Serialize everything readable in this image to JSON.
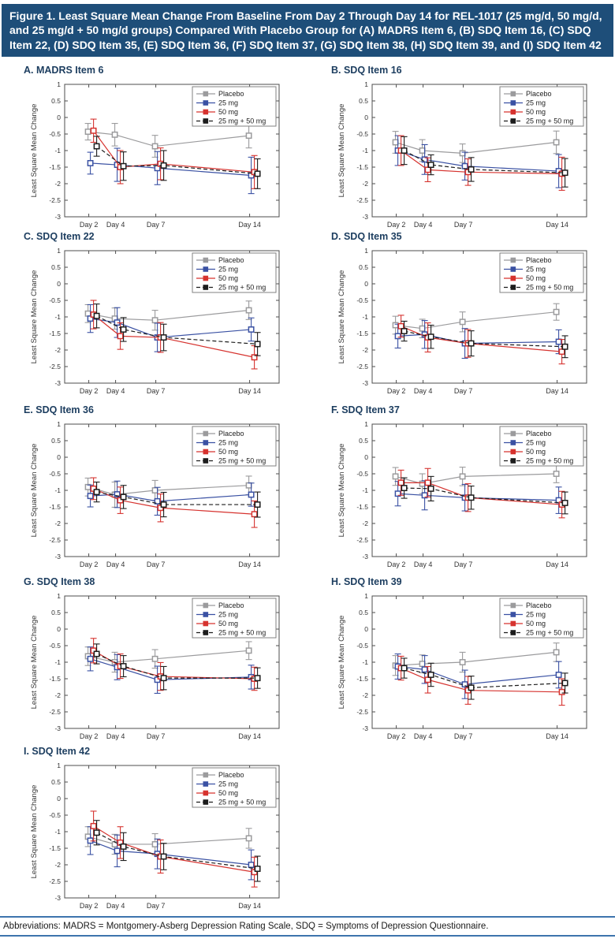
{
  "figure": {
    "title": "Figure 1. Least Square Mean Change From Baseline From Day 2 Through Day 14 for REL-1017 (25 mg/d, 50 mg/d, and 25 mg/d + 50 mg/d groups) Compared With Placebo Group for (A) MADRS Item 6, (B) SDQ Item 16, (C) SDQ Item 22, (D) SDQ Item 35, (E) SDQ Item 36, (F) SDQ Item 37, (G) SDQ Item 38, (H) SDQ Item 39, and (I) SDQ Item 42",
    "abbreviations": "Abbreviations: MADRS = Montgomery-Asberg Depression Rating Scale, SDQ = Symptoms of Depression Questionnaire."
  },
  "colors": {
    "title_bar_bg": "#1e4e79",
    "panel_title": "#1c3d5f",
    "frame": "#4d4d4d",
    "tick_label": "#333333",
    "footer_rule": "#3d74ad",
    "placebo": "#9b9b9d",
    "dose25": "#3a51a3",
    "dose50": "#d6332f",
    "combo": "#1c1c1c"
  },
  "legend": {
    "items": [
      {
        "label": "Placebo",
        "color": "#9b9b9d",
        "dash": ""
      },
      {
        "label": "25 mg",
        "color": "#3a51a3",
        "dash": ""
      },
      {
        "label": "50 mg",
        "color": "#d6332f",
        "dash": ""
      },
      {
        "label": "25 mg + 50 mg",
        "color": "#1c1c1c",
        "dash": "5,3"
      }
    ]
  },
  "axes": {
    "ylabel": "Least Square Mean Change",
    "ylim": [
      -3,
      1
    ],
    "xlim": [
      0.2,
      16.2
    ],
    "yticks": [
      1,
      0.5,
      0,
      -0.5,
      -1,
      -1.5,
      -2,
      -2.5,
      -3
    ],
    "ytick_labels": [
      "1",
      "0.5",
      "0",
      "-0.5",
      "-1",
      "-1.5",
      "-2",
      "-2.5",
      "-3"
    ],
    "x_days": [
      2,
      4,
      7,
      14
    ],
    "xtick_labels": [
      "Day 2",
      "Day 4",
      "Day 7",
      "Day 14"
    ],
    "grid": false,
    "legend_position": "top-right"
  },
  "chart_data": [
    {
      "panel": "A",
      "title": "A. MADRS Item 6",
      "type": "line",
      "categories": [
        "Day 2",
        "Day 4",
        "Day 7",
        "Day 14"
      ],
      "x_days": [
        2,
        4,
        7,
        14
      ],
      "series": [
        {
          "name": "Placebo",
          "values": [
            -0.43,
            -0.52,
            -0.87,
            -0.55
          ],
          "errors": [
            0.25,
            0.34,
            0.33,
            0.37
          ]
        },
        {
          "name": "25 mg",
          "values": [
            -1.38,
            -1.43,
            -1.53,
            -1.75
          ],
          "errors": [
            0.33,
            0.5,
            0.5,
            0.55
          ]
        },
        {
          "name": "50 mg",
          "values": [
            -0.4,
            -1.5,
            -1.4,
            -1.65
          ],
          "errors": [
            0.35,
            0.5,
            0.48,
            0.5
          ]
        },
        {
          "name": "25 mg + 50 mg",
          "values": [
            -0.87,
            -1.47,
            -1.45,
            -1.7
          ],
          "errors": [
            0.3,
            0.43,
            0.45,
            0.45
          ]
        }
      ]
    },
    {
      "panel": "B",
      "title": "B. SDQ Item 16",
      "type": "line",
      "categories": [
        "Day 2",
        "Day 4",
        "Day 7",
        "Day 14"
      ],
      "x_days": [
        2,
        4,
        7,
        14
      ],
      "series": [
        {
          "name": "Placebo",
          "values": [
            -0.75,
            -1.0,
            -1.08,
            -0.75
          ],
          "errors": [
            0.33,
            0.33,
            0.28,
            0.34
          ]
        },
        {
          "name": "25 mg",
          "values": [
            -1.0,
            -1.27,
            -1.47,
            -1.62
          ],
          "errors": [
            0.45,
            0.45,
            0.42,
            0.5
          ]
        },
        {
          "name": "50 mg",
          "values": [
            -1.0,
            -1.58,
            -1.65,
            -1.7
          ],
          "errors": [
            0.45,
            0.36,
            0.4,
            0.5
          ]
        },
        {
          "name": "25 mg + 50 mg",
          "values": [
            -1.0,
            -1.43,
            -1.57,
            -1.67
          ],
          "errors": [
            0.42,
            0.3,
            0.36,
            0.43
          ]
        }
      ]
    },
    {
      "panel": "C",
      "title": "C. SDQ Item 22",
      "type": "line",
      "categories": [
        "Day 2",
        "Day 4",
        "Day 7",
        "Day 14"
      ],
      "x_days": [
        2,
        4,
        7,
        14
      ],
      "series": [
        {
          "name": "Placebo",
          "values": [
            -0.9,
            -1.05,
            -1.1,
            -0.8
          ],
          "errors": [
            0.27,
            0.32,
            0.3,
            0.28
          ]
        },
        {
          "name": "25 mg",
          "values": [
            -1.05,
            -1.17,
            -1.62,
            -1.38
          ],
          "errors": [
            0.42,
            0.45,
            0.43,
            0.35
          ]
        },
        {
          "name": "50 mg",
          "values": [
            -0.93,
            -1.58,
            -1.62,
            -2.22
          ],
          "errors": [
            0.43,
            0.4,
            0.45,
            0.35
          ]
        },
        {
          "name": "25 mg + 50 mg",
          "values": [
            -0.97,
            -1.38,
            -1.62,
            -1.82
          ],
          "errors": [
            0.36,
            0.36,
            0.4,
            0.35
          ]
        }
      ]
    },
    {
      "panel": "D",
      "title": "D. SDQ Item 35",
      "type": "line",
      "categories": [
        "Day 2",
        "Day 4",
        "Day 7",
        "Day 14"
      ],
      "x_days": [
        2,
        4,
        7,
        14
      ],
      "series": [
        {
          "name": "Placebo",
          "values": [
            -1.25,
            -1.35,
            -1.15,
            -0.85
          ],
          "errors": [
            0.27,
            0.28,
            0.3,
            0.25
          ]
        },
        {
          "name": "25 mg",
          "values": [
            -1.58,
            -1.53,
            -1.8,
            -1.75
          ],
          "errors": [
            0.36,
            0.42,
            0.45,
            0.36
          ]
        },
        {
          "name": "50 mg",
          "values": [
            -1.28,
            -1.62,
            -1.8,
            -2.05
          ],
          "errors": [
            0.33,
            0.44,
            0.42,
            0.37
          ]
        },
        {
          "name": "25 mg + 50 mg",
          "values": [
            -1.43,
            -1.6,
            -1.8,
            -1.9
          ],
          "errors": [
            0.3,
            0.35,
            0.38,
            0.33
          ]
        }
      ]
    },
    {
      "panel": "E",
      "title": "E. SDQ Item 36",
      "type": "line",
      "categories": [
        "Day 2",
        "Day 4",
        "Day 7",
        "Day 14"
      ],
      "x_days": [
        2,
        4,
        7,
        14
      ],
      "series": [
        {
          "name": "Placebo",
          "values": [
            -0.9,
            -1.13,
            -1.0,
            -0.85
          ],
          "errors": [
            0.27,
            0.38,
            0.3,
            0.28
          ]
        },
        {
          "name": "25 mg",
          "values": [
            -1.17,
            -1.12,
            -1.33,
            -1.13
          ],
          "errors": [
            0.33,
            0.4,
            0.42,
            0.35
          ]
        },
        {
          "name": "50 mg",
          "values": [
            -0.95,
            -1.3,
            -1.53,
            -1.72
          ],
          "errors": [
            0.33,
            0.4,
            0.42,
            0.4
          ]
        },
        {
          "name": "25 mg + 50 mg",
          "values": [
            -1.05,
            -1.2,
            -1.43,
            -1.43
          ],
          "errors": [
            0.3,
            0.35,
            0.37,
            0.38
          ]
        }
      ]
    },
    {
      "panel": "F",
      "title": "F. SDQ Item 37",
      "type": "line",
      "categories": [
        "Day 2",
        "Day 4",
        "Day 7",
        "Day 14"
      ],
      "x_days": [
        2,
        4,
        7,
        14
      ],
      "series": [
        {
          "name": "Placebo",
          "values": [
            -0.58,
            -0.8,
            -0.58,
            -0.5
          ],
          "errors": [
            0.27,
            0.3,
            0.28,
            0.27
          ]
        },
        {
          "name": "25 mg",
          "values": [
            -1.1,
            -1.15,
            -1.22,
            -1.3
          ],
          "errors": [
            0.37,
            0.44,
            0.4,
            0.4
          ]
        },
        {
          "name": "50 mg",
          "values": [
            -0.77,
            -0.77,
            -1.22,
            -1.43
          ],
          "errors": [
            0.38,
            0.43,
            0.42,
            0.4
          ]
        },
        {
          "name": "25 mg + 50 mg",
          "values": [
            -0.93,
            -0.95,
            -1.22,
            -1.38
          ],
          "errors": [
            0.31,
            0.37,
            0.35,
            0.33
          ]
        }
      ]
    },
    {
      "panel": "G",
      "title": "G. SDQ Item 38",
      "type": "line",
      "categories": [
        "Day 2",
        "Day 4",
        "Day 7",
        "Day 14"
      ],
      "x_days": [
        2,
        4,
        7,
        14
      ],
      "series": [
        {
          "name": "Placebo",
          "values": [
            -0.82,
            -1.0,
            -0.9,
            -0.65
          ],
          "errors": [
            0.28,
            0.3,
            0.28,
            0.27
          ]
        },
        {
          "name": "25 mg",
          "values": [
            -0.9,
            -1.15,
            -1.53,
            -1.45
          ],
          "errors": [
            0.36,
            0.38,
            0.41,
            0.36
          ]
        },
        {
          "name": "50 mg",
          "values": [
            -0.65,
            -1.12,
            -1.43,
            -1.5
          ],
          "errors": [
            0.37,
            0.37,
            0.42,
            0.35
          ]
        },
        {
          "name": "25 mg + 50 mg",
          "values": [
            -0.75,
            -1.12,
            -1.48,
            -1.48
          ],
          "errors": [
            0.3,
            0.32,
            0.35,
            0.31
          ]
        }
      ]
    },
    {
      "panel": "H",
      "title": "H. SDQ Item 39",
      "type": "line",
      "categories": [
        "Day 2",
        "Day 4",
        "Day 7",
        "Day 14"
      ],
      "x_days": [
        2,
        4,
        7,
        14
      ],
      "series": [
        {
          "name": "Placebo",
          "values": [
            -1.1,
            -1.05,
            -1.0,
            -0.7
          ],
          "errors": [
            0.3,
            0.27,
            0.3,
            0.28
          ]
        },
        {
          "name": "25 mg",
          "values": [
            -1.13,
            -1.22,
            -1.67,
            -1.38
          ],
          "errors": [
            0.38,
            0.42,
            0.43,
            0.4
          ]
        },
        {
          "name": "50 mg",
          "values": [
            -1.18,
            -1.53,
            -1.85,
            -1.9
          ],
          "errors": [
            0.36,
            0.4,
            0.42,
            0.4
          ]
        },
        {
          "name": "25 mg + 50 mg",
          "values": [
            -1.18,
            -1.38,
            -1.77,
            -1.63
          ],
          "errors": [
            0.3,
            0.35,
            0.35,
            0.3
          ]
        }
      ]
    },
    {
      "panel": "I",
      "title": "I. SDQ Item 42",
      "type": "line",
      "categories": [
        "Day 2",
        "Day 4",
        "Day 7",
        "Day 14"
      ],
      "x_days": [
        2,
        4,
        7,
        14
      ],
      "series": [
        {
          "name": "Placebo",
          "values": [
            -1.15,
            -1.38,
            -1.38,
            -1.2
          ],
          "errors": [
            0.3,
            0.3,
            0.32,
            0.3
          ]
        },
        {
          "name": "25 mg",
          "values": [
            -1.27,
            -1.58,
            -1.67,
            -2.0
          ],
          "errors": [
            0.42,
            0.48,
            0.45,
            0.45
          ]
        },
        {
          "name": "50 mg",
          "values": [
            -0.83,
            -1.33,
            -1.75,
            -2.22
          ],
          "errors": [
            0.45,
            0.48,
            0.5,
            0.45
          ]
        },
        {
          "name": "25 mg + 50 mg",
          "values": [
            -1.03,
            -1.45,
            -1.75,
            -2.12
          ],
          "errors": [
            0.37,
            0.42,
            0.4,
            0.38
          ]
        }
      ]
    }
  ]
}
